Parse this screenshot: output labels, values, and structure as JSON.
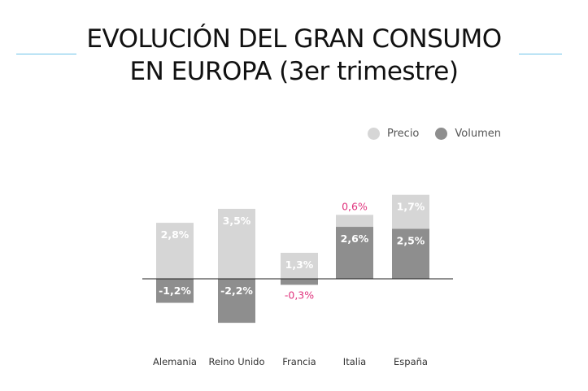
{
  "title_lines": [
    "EVOLUCIÓN DEL GRAN CONSUMO",
    "EN EUROPA (3er trimestre)"
  ],
  "colors": {
    "precio": "#d6d6d6",
    "volumen": "#8e8e8e",
    "accent_rule": "#6ec3e8",
    "highlight_label": "#e0357e"
  },
  "chart_data": {
    "type": "bar",
    "stacked": true,
    "categories": [
      "Alemania",
      "Reino Unido",
      "Francia",
      "Italia",
      "España"
    ],
    "series": [
      {
        "name": "Precio",
        "values": [
          2.8,
          3.5,
          1.3,
          0.6,
          1.7
        ],
        "labels": [
          "2,8%",
          "3,5%",
          "1,3%",
          "0,6%",
          "1,7%"
        ]
      },
      {
        "name": "Volumen",
        "values": [
          -1.2,
          -2.2,
          -0.3,
          2.6,
          2.5
        ],
        "labels": [
          "-1,2%",
          "-2,2%",
          "-0,3%",
          "2,6%",
          "2,5%"
        ]
      }
    ],
    "highlighted_labels": [
      "Volumen:Francia",
      "Precio:Italia"
    ],
    "legend": "top-right",
    "grid": false
  }
}
